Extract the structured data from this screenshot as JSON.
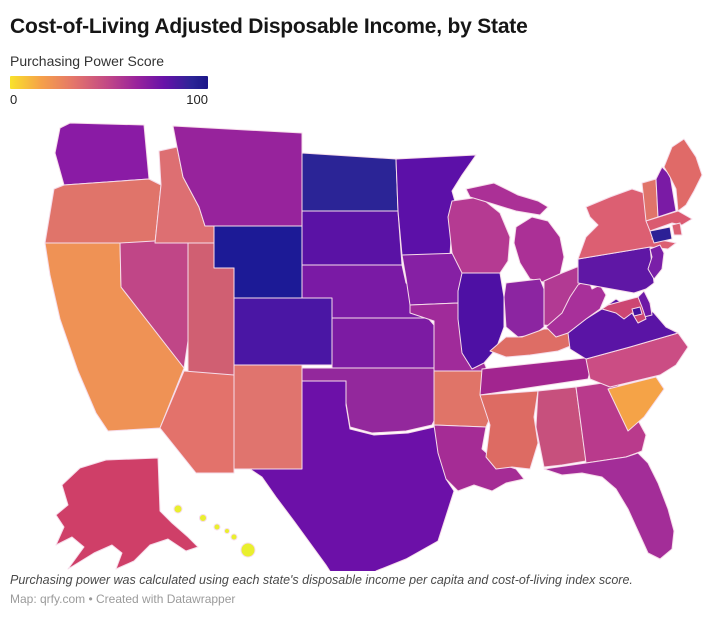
{
  "header": {
    "title": "Cost-of-Living Adjusted Disposable Income, by State",
    "legend_label": "Purchasing Power Score",
    "legend_min": "0",
    "legend_max": "100",
    "gradient_stops": [
      "#f9e22b 0%",
      "#f5a04a 16%",
      "#e4766a 32%",
      "#c04687 50%",
      "#99239c 64%",
      "#6612a8 78%",
      "#2b2496 92%",
      "#1b1688 100%"
    ]
  },
  "footer": {
    "note": "Purchasing power was calculated using each state's disposable income per capita and cost-of-living index score.",
    "attribution": "Map: qrfy.com • Created with Datawrapper"
  },
  "chart_data": {
    "type": "heatmap",
    "subtype": "us-state-choropleth",
    "title": "Cost-of-Living Adjusted Disposable Income, by State",
    "legend": {
      "label": "Purchasing Power Score",
      "min": 0,
      "max": 100,
      "scale": "yellow (0) to dark navy (100)"
    },
    "states": [
      {
        "code": "WA",
        "name": "Washington",
        "color": "#8a1ba5",
        "score_estimate": 68
      },
      {
        "code": "OR",
        "name": "Oregon",
        "color": "#e0746a",
        "score_estimate": 30
      },
      {
        "code": "CA",
        "name": "California",
        "color": "#ef9255",
        "score_estimate": 20
      },
      {
        "code": "NV",
        "name": "Nevada",
        "color": "#c04687",
        "score_estimate": 42
      },
      {
        "code": "ID",
        "name": "Idaho",
        "color": "#dd6f72",
        "score_estimate": 32
      },
      {
        "code": "MT",
        "name": "Montana",
        "color": "#97239c",
        "score_estimate": 62
      },
      {
        "code": "WY",
        "name": "Wyoming",
        "color": "#1c1a96",
        "score_estimate": 98
      },
      {
        "code": "UT",
        "name": "Utah",
        "color": "#d05f72",
        "score_estimate": 35
      },
      {
        "code": "CO",
        "name": "Colorado",
        "color": "#4a16a4",
        "score_estimate": 86
      },
      {
        "code": "AZ",
        "name": "Arizona",
        "color": "#e3726b",
        "score_estimate": 30
      },
      {
        "code": "NM",
        "name": "New Mexico",
        "color": "#e0746e",
        "score_estimate": 30
      },
      {
        "code": "ND",
        "name": "North Dakota",
        "color": "#2b2496",
        "score_estimate": 93
      },
      {
        "code": "SD",
        "name": "South Dakota",
        "color": "#5a12a5",
        "score_estimate": 76
      },
      {
        "code": "NE",
        "name": "Nebraska",
        "color": "#7a1aa5",
        "score_estimate": 70
      },
      {
        "code": "KS",
        "name": "Kansas",
        "color": "#7c1ba3",
        "score_estimate": 70
      },
      {
        "code": "OK",
        "name": "Oklahoma",
        "color": "#93289c",
        "score_estimate": 60
      },
      {
        "code": "TX",
        "name": "Texas",
        "color": "#6c10a8",
        "score_estimate": 80
      },
      {
        "code": "MN",
        "name": "Minnesota",
        "color": "#5c10a8",
        "score_estimate": 80
      },
      {
        "code": "IA",
        "name": "Iowa",
        "color": "#8620a4",
        "score_estimate": 65
      },
      {
        "code": "MO",
        "name": "Missouri",
        "color": "#a02b9a",
        "score_estimate": 55
      },
      {
        "code": "AR",
        "name": "Arkansas",
        "color": "#e07468",
        "score_estimate": 30
      },
      {
        "code": "LA",
        "name": "Louisiana",
        "color": "#a52c95",
        "score_estimate": 55
      },
      {
        "code": "WI",
        "name": "Wisconsin",
        "color": "#b53a92",
        "score_estimate": 50
      },
      {
        "code": "IL",
        "name": "Illinois",
        "color": "#4e10a4",
        "score_estimate": 88
      },
      {
        "code": "MI",
        "name": "Michigan",
        "color": "#ab3096",
        "score_estimate": 53
      },
      {
        "code": "IN",
        "name": "Indiana",
        "color": "#8c25a1",
        "score_estimate": 63
      },
      {
        "code": "OH",
        "name": "Ohio",
        "color": "#b23a93",
        "score_estimate": 50
      },
      {
        "code": "KY",
        "name": "Kentucky",
        "color": "#de6d65",
        "score_estimate": 30
      },
      {
        "code": "TN",
        "name": "Tennessee",
        "color": "#a2258f",
        "score_estimate": 58
      },
      {
        "code": "MS",
        "name": "Mississippi",
        "color": "#dd6b63",
        "score_estimate": 30
      },
      {
        "code": "AL",
        "name": "Alabama",
        "color": "#c7507d",
        "score_estimate": 38
      },
      {
        "code": "GA",
        "name": "Georgia",
        "color": "#b93a8c",
        "score_estimate": 48
      },
      {
        "code": "FL",
        "name": "Florida",
        "color": "#a32d98",
        "score_estimate": 55
      },
      {
        "code": "SC",
        "name": "South Carolina",
        "color": "#f5a347",
        "score_estimate": 15
      },
      {
        "code": "NC",
        "name": "North Carolina",
        "color": "#cb4d84",
        "score_estimate": 42
      },
      {
        "code": "VA",
        "name": "Virginia",
        "color": "#5a14a5",
        "score_estimate": 76
      },
      {
        "code": "WV",
        "name": "West Virginia",
        "color": "#a8309a",
        "score_estimate": 55
      },
      {
        "code": "PA",
        "name": "Pennsylvania",
        "color": "#5f17a5",
        "score_estimate": 76
      },
      {
        "code": "NY",
        "name": "New York",
        "color": "#dc5f72",
        "score_estimate": 33
      },
      {
        "code": "VT",
        "name": "Vermont",
        "color": "#e0746a",
        "score_estimate": 30
      },
      {
        "code": "NH",
        "name": "New Hampshire",
        "color": "#7a1ba5",
        "score_estimate": 70
      },
      {
        "code": "ME",
        "name": "Maine",
        "color": "#e06a68",
        "score_estimate": 30
      },
      {
        "code": "MA",
        "name": "Massachusetts",
        "color": "#da5a70",
        "score_estimate": 33
      },
      {
        "code": "RI",
        "name": "Rhode Island",
        "color": "#dc5f72",
        "score_estimate": 33
      },
      {
        "code": "CT",
        "name": "Connecticut",
        "color": "#2c2096",
        "score_estimate": 92
      },
      {
        "code": "NJ",
        "name": "New Jersey",
        "color": "#7a1fa8",
        "score_estimate": 70
      },
      {
        "code": "DE",
        "name": "Delaware",
        "color": "#6d18a6",
        "score_estimate": 72
      },
      {
        "code": "MD",
        "name": "Maryland",
        "color": "#cc4672",
        "score_estimate": 33
      },
      {
        "code": "DC",
        "name": "District of Columbia",
        "color": "#44129e",
        "score_estimate": 78
      },
      {
        "code": "AK",
        "name": "Alaska",
        "color": "#cf3f68",
        "score_estimate": 36
      },
      {
        "code": "HI",
        "name": "Hawaii",
        "color": "#e9ef2e",
        "score_estimate": 2
      }
    ]
  }
}
